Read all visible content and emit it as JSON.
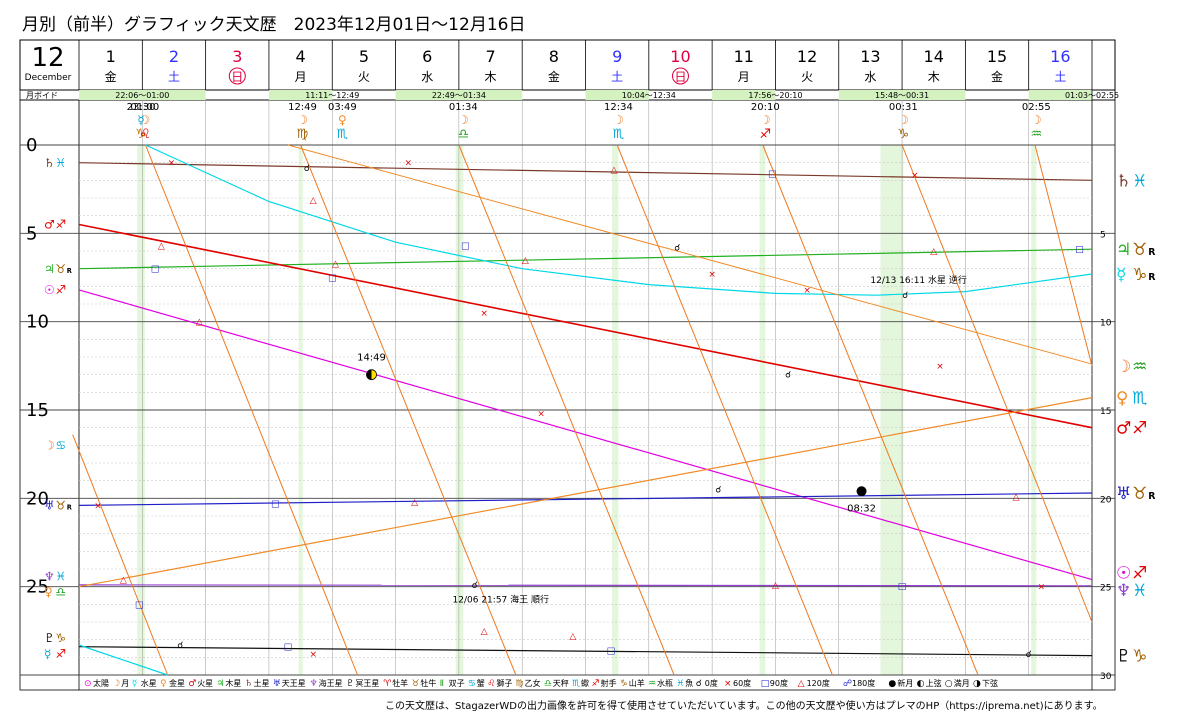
{
  "title": "月別（前半）グラフィック天文歴　2023年12月01日〜12月16日",
  "credit": "この天文歴は、StagazerWDの出力画像を許可を得て使用させていただいています。この他の天文歴や使い方はプレマのHP（https://iprema.net)にあります。",
  "colors": {
    "sun": "#e100e1",
    "moon": "#f07820",
    "mercury": "#00d8e8",
    "venus": "#f08c28",
    "mars": "#e00000",
    "jupiter": "#20b020",
    "saturn": "#7a3a2a",
    "uranus": "#2020c8",
    "neptune": "#9040d0",
    "pluto": "#101010",
    "blue_day": "#3030ff",
    "red_day": "#e00040",
    "void_bg": "#d4f2c0",
    "grid": "#c8c8c8"
  },
  "chart_data": {
    "type": "line",
    "title": "月別（前半）グラフィック天文歴　2023年12月01日〜12月16日",
    "month": "12",
    "month_label": "December",
    "xlim": [
      1,
      17
    ],
    "ylim": [
      0,
      30
    ],
    "y_ticks_left": [
      "0",
      "5",
      "10",
      "15",
      "20",
      "25"
    ],
    "y_ticks_right": [
      "5",
      "10",
      "15",
      "20",
      "25",
      "30"
    ],
    "days": [
      {
        "day": "1",
        "dow": "金",
        "kind": "normal"
      },
      {
        "day": "2",
        "dow": "土",
        "kind": "sat"
      },
      {
        "day": "3",
        "dow": "日",
        "kind": "sun"
      },
      {
        "day": "4",
        "dow": "月",
        "kind": "normal"
      },
      {
        "day": "5",
        "dow": "火",
        "kind": "normal"
      },
      {
        "day": "6",
        "dow": "水",
        "kind": "normal"
      },
      {
        "day": "7",
        "dow": "木",
        "kind": "normal"
      },
      {
        "day": "8",
        "dow": "金",
        "kind": "normal"
      },
      {
        "day": "9",
        "dow": "土",
        "kind": "sat"
      },
      {
        "day": "10",
        "dow": "日",
        "kind": "sun"
      },
      {
        "day": "11",
        "dow": "月",
        "kind": "normal"
      },
      {
        "day": "12",
        "dow": "火",
        "kind": "normal"
      },
      {
        "day": "13",
        "dow": "水",
        "kind": "normal"
      },
      {
        "day": "14",
        "dow": "木",
        "kind": "normal"
      },
      {
        "day": "15",
        "dow": "金",
        "kind": "normal"
      },
      {
        "day": "16",
        "dow": "土",
        "kind": "sat"
      }
    ],
    "void_label": "月ボイド",
    "void_periods": [
      {
        "start": 1.92,
        "end": 2.04,
        "label": "22:06〜01:00"
      },
      {
        "start": 4.47,
        "end": 4.53,
        "label": "11:11〜12:49"
      },
      {
        "start": 6.95,
        "end": 7.07,
        "label": "22:49〜01:34"
      },
      {
        "start": 9.42,
        "end": 9.52,
        "label": "10:04〜12:34"
      },
      {
        "start": 11.75,
        "end": 11.84,
        "label": "17:56〜20:10"
      },
      {
        "start": 13.66,
        "end": 14.02,
        "label": "15:48〜00:31"
      },
      {
        "start": 16.04,
        "end": 16.12,
        "label": "01:03〜02:55"
      }
    ],
    "ingresses": [
      {
        "x": 1.98,
        "time": "23:30",
        "planet": "☿",
        "sign": "♑",
        "pcolor": "#00a8d8",
        "scolor": "#c07000"
      },
      {
        "x": 2.04,
        "time": "01:00",
        "planet": "☽",
        "sign": "♌",
        "pcolor": "#f07820",
        "scolor": "#e00000"
      },
      {
        "x": 4.53,
        "time": "12:49",
        "planet": "☽",
        "sign": "♍",
        "pcolor": "#f07820",
        "scolor": "#a06000"
      },
      {
        "x": 5.16,
        "time": "03:49",
        "planet": "♀",
        "sign": "♏",
        "pcolor": "#f08c28",
        "scolor": "#00a8d8"
      },
      {
        "x": 7.07,
        "time": "01:34",
        "planet": "☽",
        "sign": "♎",
        "pcolor": "#f07820",
        "scolor": "#20a020"
      },
      {
        "x": 9.52,
        "time": "12:34",
        "planet": "☽",
        "sign": "♏",
        "pcolor": "#f07820",
        "scolor": "#00a8d8"
      },
      {
        "x": 11.84,
        "time": "20:10",
        "planet": "☽",
        "sign": "♐",
        "pcolor": "#f07820",
        "scolor": "#e00000"
      },
      {
        "x": 14.02,
        "time": "00:31",
        "planet": "☽",
        "sign": "♑",
        "pcolor": "#f07820",
        "scolor": "#a06000"
      },
      {
        "x": 16.12,
        "time": "02:55",
        "planet": "☽",
        "sign": "♒",
        "pcolor": "#f07820",
        "scolor": "#20a020"
      }
    ],
    "series": [
      {
        "name": "土星",
        "color": "#7a3a2a",
        "points": [
          [
            1,
            1.0
          ],
          [
            17,
            2.0
          ]
        ]
      },
      {
        "name": "木星",
        "color": "#20b020",
        "points": [
          [
            1,
            7.0
          ],
          [
            17,
            5.9
          ]
        ]
      },
      {
        "name": "太陽",
        "color": "#e100e1",
        "points": [
          [
            1,
            8.2
          ],
          [
            17,
            24.6
          ]
        ]
      },
      {
        "name": "火星",
        "color": "#e00000",
        "points": [
          [
            1,
            4.5
          ],
          [
            17,
            16.0
          ]
        ]
      },
      {
        "name": "天王星",
        "color": "#2020c8",
        "points": [
          [
            1,
            20.4
          ],
          [
            17,
            19.7
          ]
        ]
      },
      {
        "name": "海王星",
        "color": "#9040d0",
        "points": [
          [
            1,
            24.9
          ],
          [
            17,
            24.95
          ]
        ]
      },
      {
        "name": "冥王星",
        "color": "#101010",
        "points": [
          [
            1,
            28.4
          ],
          [
            17,
            28.9
          ]
        ]
      },
      {
        "name": "金星",
        "color": "#f08c28",
        "points": [
          [
            1,
            25.0
          ],
          [
            17,
            14.3
          ]
        ]
      },
      {
        "name": "水星",
        "color": "#00d8e8",
        "points": [
          [
            2.05,
            0
          ],
          [
            4,
            3.2
          ],
          [
            6,
            5.5
          ],
          [
            8,
            7.0
          ],
          [
            10,
            7.9
          ],
          [
            12,
            8.4
          ],
          [
            13.6,
            8.5
          ],
          [
            15,
            8.3
          ],
          [
            17,
            7.3
          ]
        ]
      },
      {
        "name": "水星",
        "color": "#00d8e8",
        "points": [
          [
            1,
            28.3
          ],
          [
            2.4,
            30
          ]
        ]
      }
    ],
    "moon_segments": [
      [
        [
          0.9,
          16.4
        ],
        [
          2.4,
          30
        ]
      ],
      [
        [
          2.05,
          0
        ],
        [
          5.4,
          30
        ]
      ],
      [
        [
          4.5,
          0
        ],
        [
          7.9,
          30
        ]
      ],
      [
        [
          7.0,
          0
        ],
        [
          10.4,
          30
        ]
      ],
      [
        [
          9.5,
          0
        ],
        [
          12.9,
          30
        ]
      ],
      [
        [
          11.8,
          0
        ],
        [
          15.2,
          30
        ]
      ],
      [
        [
          14.0,
          0
        ],
        [
          17.0,
          27.0
        ]
      ],
      [
        [
          16.1,
          0
        ],
        [
          17.0,
          12.5
        ]
      ]
    ],
    "aspect_marks": [
      {
        "type": "sextile",
        "x": 2.46,
        "y": 1.0
      },
      {
        "type": "sextile",
        "x": 6.2,
        "y": 1.0
      },
      {
        "type": "sextile",
        "x": 14.2,
        "y": 1.7
      },
      {
        "type": "trine",
        "x": 9.45,
        "y": 1.4
      },
      {
        "type": "trine",
        "x": 4.7,
        "y": 3.1
      },
      {
        "type": "trine",
        "x": 2.3,
        "y": 5.7
      },
      {
        "type": "trine",
        "x": 5.05,
        "y": 6.7
      },
      {
        "type": "trine",
        "x": 8.05,
        "y": 6.5
      },
      {
        "type": "trine",
        "x": 14.5,
        "y": 6.0
      },
      {
        "type": "square",
        "x": 11.95,
        "y": 1.6
      },
      {
        "type": "square",
        "x": 7.1,
        "y": 5.7
      },
      {
        "type": "square",
        "x": 2.2,
        "y": 7.0
      },
      {
        "type": "square",
        "x": 5.0,
        "y": 7.5
      },
      {
        "type": "square",
        "x": 16.8,
        "y": 5.9
      },
      {
        "type": "conj",
        "x": 4.6,
        "y": 1.3
      },
      {
        "type": "conj",
        "x": 10.45,
        "y": 5.8
      },
      {
        "type": "conj",
        "x": 14.05,
        "y": 8.5
      },
      {
        "type": "conj",
        "x": 12.2,
        "y": 13.0
      },
      {
        "type": "conj",
        "x": 11.1,
        "y": 19.5
      },
      {
        "type": "conj",
        "x": 7.25,
        "y": 24.9
      },
      {
        "type": "conj",
        "x": 2.6,
        "y": 28.3
      },
      {
        "type": "conj",
        "x": 16.0,
        "y": 28.8
      },
      {
        "type": "sextile",
        "x": 7.4,
        "y": 9.5
      },
      {
        "type": "sextile",
        "x": 8.3,
        "y": 15.2
      },
      {
        "type": "sextile",
        "x": 11.0,
        "y": 7.3
      },
      {
        "type": "sextile",
        "x": 12.5,
        "y": 8.2
      },
      {
        "type": "sextile",
        "x": 14.6,
        "y": 12.5
      },
      {
        "type": "trine",
        "x": 2.9,
        "y": 10.0
      },
      {
        "type": "trine",
        "x": 6.3,
        "y": 20.2
      },
      {
        "type": "trine",
        "x": 8.8,
        "y": 27.8
      },
      {
        "type": "trine",
        "x": 15.8,
        "y": 19.9
      },
      {
        "type": "trine",
        "x": 12.0,
        "y": 24.9
      },
      {
        "type": "trine",
        "x": 1.7,
        "y": 24.6
      },
      {
        "type": "trine",
        "x": 7.4,
        "y": 27.5
      },
      {
        "type": "square",
        "x": 4.1,
        "y": 20.3
      },
      {
        "type": "square",
        "x": 14.0,
        "y": 24.95
      },
      {
        "type": "square",
        "x": 1.95,
        "y": 26.0
      },
      {
        "type": "square",
        "x": 4.3,
        "y": 28.4
      },
      {
        "type": "square",
        "x": 9.4,
        "y": 28.6
      },
      {
        "type": "sextile",
        "x": 1.3,
        "y": 20.4
      },
      {
        "type": "sextile",
        "x": 4.7,
        "y": 28.8
      },
      {
        "type": "sextile",
        "x": 16.2,
        "y": 25.0
      }
    ],
    "phases": [
      {
        "type": "lastq",
        "x": 5.62,
        "y": 13.0,
        "label": "14:49"
      },
      {
        "type": "newmoon",
        "x": 13.36,
        "y": 19.6,
        "label": "08:32"
      }
    ],
    "annotations": [
      {
        "x": 13.5,
        "y": 7.8,
        "text": "12/13 16:11 水星 逆行"
      },
      {
        "x": 6.9,
        "y": 25.9,
        "text": "12/06 21:57 海王 順行"
      }
    ],
    "left_labels": [
      {
        "y": 1.0,
        "items": [
          [
            "♄",
            "#7a3a2a"
          ],
          [
            "♓",
            "#00a8d8"
          ]
        ]
      },
      {
        "y": 4.5,
        "items": [
          [
            "♂",
            "#e00000"
          ],
          [
            "♐",
            "#e00000"
          ]
        ]
      },
      {
        "y": 7.0,
        "items": [
          [
            "♃",
            "#20b020"
          ],
          [
            "♉",
            "#a06000"
          ],
          [
            "R",
            "#000"
          ]
        ]
      },
      {
        "y": 8.2,
        "items": [
          [
            "☉",
            "#e100e1"
          ],
          [
            "♐",
            "#e00000"
          ]
        ]
      },
      {
        "y": 17.0,
        "items": [
          [
            "☽",
            "#f07820"
          ],
          [
            "♋",
            "#00a8d8"
          ]
        ]
      },
      {
        "y": 20.4,
        "items": [
          [
            "♅",
            "#2020c8"
          ],
          [
            "♉",
            "#a06000"
          ],
          [
            "R",
            "#000"
          ]
        ]
      },
      {
        "y": 24.4,
        "items": [
          [
            "♆",
            "#9040d0"
          ],
          [
            "♓",
            "#00a8d8"
          ]
        ]
      },
      {
        "y": 25.3,
        "items": [
          [
            "♀",
            "#f08c28"
          ],
          [
            "♎",
            "#20a020"
          ]
        ]
      },
      {
        "y": 27.9,
        "items": [
          [
            "♇",
            "#101010"
          ],
          [
            "♑",
            "#a06000"
          ]
        ]
      },
      {
        "y": 28.8,
        "items": [
          [
            "☿",
            "#00a8d8"
          ],
          [
            "♐",
            "#e00000"
          ]
        ]
      }
    ],
    "right_labels": [
      {
        "y": 2.0,
        "items": [
          [
            "♄",
            "#7a3a2a"
          ],
          [
            "♓",
            "#00a8d8"
          ]
        ]
      },
      {
        "y": 5.9,
        "items": [
          [
            "♃",
            "#20b020"
          ],
          [
            "♉",
            "#a06000"
          ],
          [
            "R",
            "#000"
          ]
        ]
      },
      {
        "y": 7.3,
        "items": [
          [
            "☿",
            "#00d8e8"
          ],
          [
            "♑",
            "#a06000"
          ],
          [
            "R",
            "#000"
          ]
        ]
      },
      {
        "y": 12.5,
        "items": [
          [
            "☽",
            "#f07820"
          ],
          [
            "♒",
            "#20a020"
          ]
        ]
      },
      {
        "y": 14.3,
        "items": [
          [
            "♀",
            "#f08c28"
          ],
          [
            "♏",
            "#00a8d8"
          ]
        ]
      },
      {
        "y": 16.0,
        "items": [
          [
            "♂",
            "#e00000"
          ],
          [
            "♐",
            "#e00000"
          ]
        ]
      },
      {
        "y": 19.7,
        "items": [
          [
            "♅",
            "#2020c8"
          ],
          [
            "♉",
            "#a06000"
          ],
          [
            "R",
            "#000"
          ]
        ]
      },
      {
        "y": 24.2,
        "items": [
          [
            "☉",
            "#e100e1"
          ],
          [
            "♐",
            "#e00000"
          ]
        ]
      },
      {
        "y": 25.2,
        "items": [
          [
            "♆",
            "#9040d0"
          ],
          [
            "♓",
            "#00a8d8"
          ]
        ]
      },
      {
        "y": 28.9,
        "items": [
          [
            "♇",
            "#101010"
          ],
          [
            "♑",
            "#a06000"
          ]
        ]
      }
    ],
    "legend": [
      {
        "sym": "⊙",
        "text": "太陽",
        "color": "#e100e1"
      },
      {
        "sym": "☽",
        "text": "月",
        "color": "#f07820"
      },
      {
        "sym": "☿",
        "text": "水星",
        "color": "#00d8e8"
      },
      {
        "sym": "♀",
        "text": "金星",
        "color": "#f08c28"
      },
      {
        "sym": "♂",
        "text": "火星",
        "color": "#e00000"
      },
      {
        "sym": "♃",
        "text": "木星",
        "color": "#20b020"
      },
      {
        "sym": "♄",
        "text": "土星",
        "color": "#7a3a2a"
      },
      {
        "sym": "♅",
        "text": "天王星",
        "color": "#2020c8"
      },
      {
        "sym": "♆",
        "text": "海王星",
        "color": "#9040d0"
      },
      {
        "sym": "♇",
        "text": "冥王星",
        "color": "#101010"
      },
      {
        "sym": "♈",
        "text": "牡羊",
        "color": "#e00000"
      },
      {
        "sym": "♉",
        "text": "牡牛",
        "color": "#a06000"
      },
      {
        "sym": "Ⅱ",
        "text": "双子",
        "color": "#20a020"
      },
      {
        "sym": "♋",
        "text": "蟹",
        "color": "#00a8d8"
      },
      {
        "sym": "♌",
        "text": "獅子",
        "color": "#e00000"
      },
      {
        "sym": "♍",
        "text": "乙女",
        "color": "#a06000"
      },
      {
        "sym": "♎",
        "text": "天秤",
        "color": "#20a020"
      },
      {
        "sym": "♏",
        "text": "蠍",
        "color": "#00a8d8"
      },
      {
        "sym": "♐",
        "text": "射手",
        "color": "#e00000"
      },
      {
        "sym": "♑",
        "text": "山羊",
        "color": "#a06000"
      },
      {
        "sym": "♒",
        "text": "水瓶",
        "color": "#20a020"
      },
      {
        "sym": "♓",
        "text": "魚",
        "color": "#00a8d8"
      },
      {
        "sym": "☌",
        "text": "0度",
        "color": "#000"
      },
      {
        "sym": "×",
        "text": "60度",
        "color": "#e00000"
      },
      {
        "sym": "□",
        "text": "90度",
        "color": "#2020c8"
      },
      {
        "sym": "△",
        "text": "120度",
        "color": "#e00000"
      },
      {
        "sym": "☍",
        "text": "180度",
        "color": "#2020c8"
      },
      {
        "sym": "●",
        "text": "新月",
        "color": "#000"
      },
      {
        "sym": "◐",
        "text": "上弦",
        "color": "#000"
      },
      {
        "sym": "○",
        "text": "満月",
        "color": "#000"
      },
      {
        "sym": "◑",
        "text": "下弦",
        "color": "#000"
      }
    ]
  }
}
